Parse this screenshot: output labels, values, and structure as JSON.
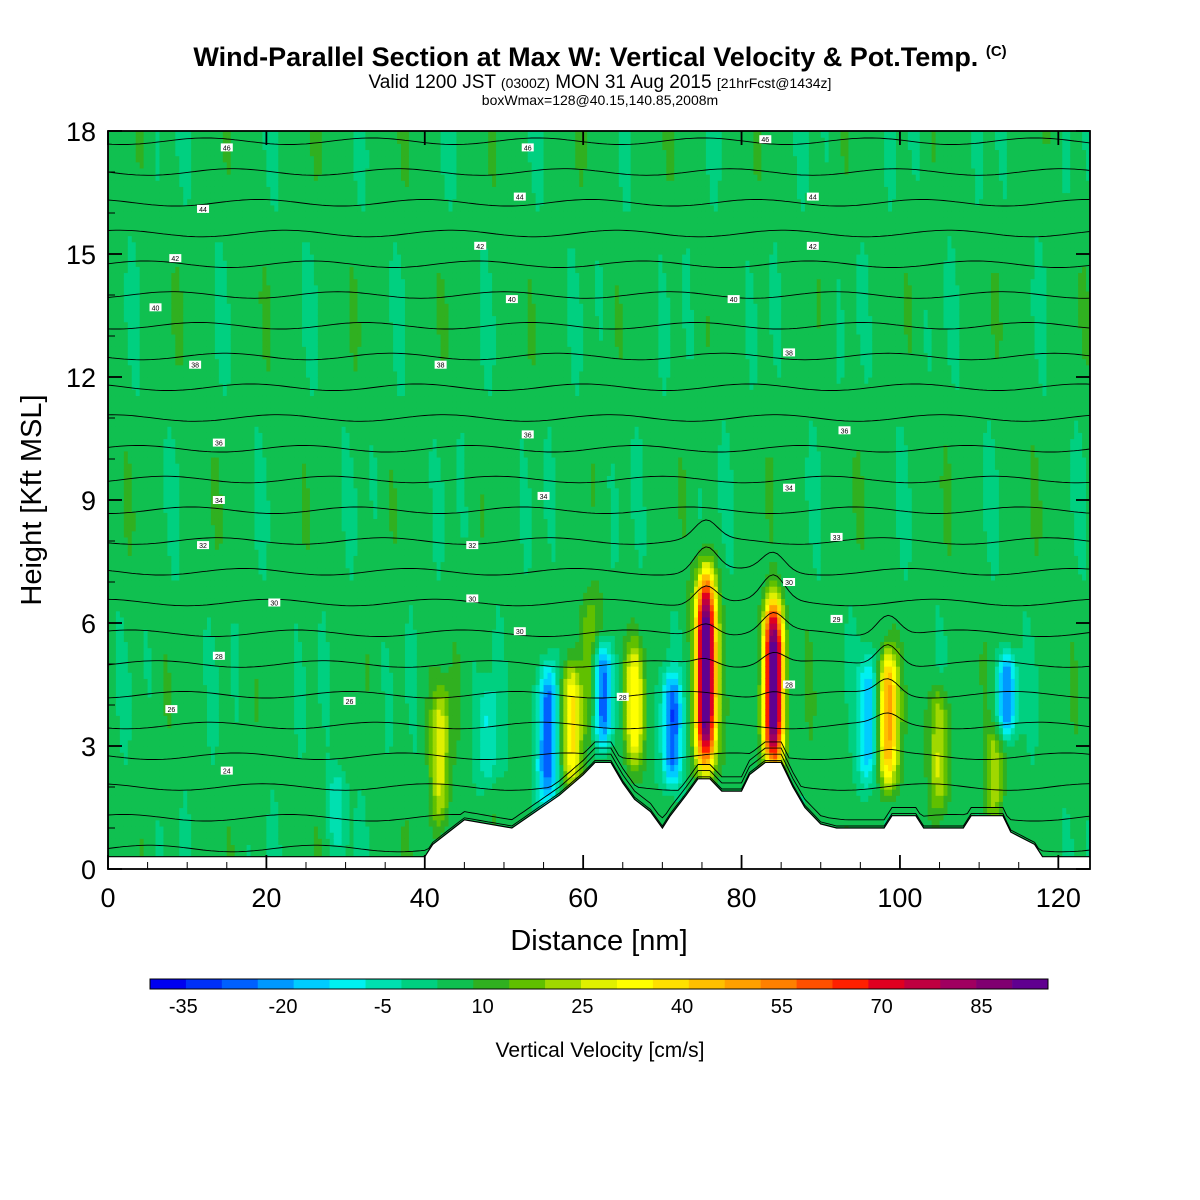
{
  "header": {
    "title": "Wind-Parallel Section at Max W: Vertical Velocity & Pot.Temp.",
    "copyright": "(C)",
    "valid_prefix": "Valid 1200 JST",
    "valid_utc": "(0300Z)",
    "valid_date": "MON 31 Aug 2015",
    "forecast": "[21hrFcst@1434z]",
    "box_info": "boxWmax=128@40.15,140.85,2008m"
  },
  "chart_data": {
    "type": "heatmap",
    "xlabel": "Distance [nm]",
    "ylabel": "Height [Kft MSL]",
    "xlim": [
      0,
      124
    ],
    "ylim": [
      0,
      18
    ],
    "x_ticks": [
      0,
      20,
      40,
      60,
      80,
      100,
      120
    ],
    "y_ticks": [
      0,
      3,
      6,
      9,
      12,
      15,
      18
    ],
    "colorbar": {
      "label": "Vertical Velocity [cm/s]",
      "min": -40,
      "max": 95,
      "step": 5,
      "tick_values": [
        -35,
        -20,
        -5,
        10,
        25,
        40,
        55,
        70,
        85
      ],
      "tick_labels": [
        "-35",
        "-20",
        "-5",
        "10",
        "25",
        "40",
        "55",
        "70",
        "85"
      ],
      "colors": [
        "#0000f0",
        "#0030f8",
        "#0060ff",
        "#0098ff",
        "#00ccff",
        "#00f0f0",
        "#00e0b0",
        "#00d080",
        "#10c050",
        "#30b020",
        "#60c000",
        "#a0d800",
        "#e0f000",
        "#ffff00",
        "#ffe000",
        "#ffc000",
        "#ffa000",
        "#ff8000",
        "#ff5000",
        "#ff2000",
        "#e00020",
        "#c00040",
        "#a00060",
        "#800070",
        "#600090"
      ]
    },
    "features": [
      {
        "x": 55.5,
        "zmin": 1.6,
        "zmax": 5.0,
        "w": -35
      },
      {
        "x": 62.5,
        "zmin": 3.0,
        "zmax": 5.5,
        "w": -32
      },
      {
        "x": 71.2,
        "zmin": 2.0,
        "zmax": 4.8,
        "w": -30
      },
      {
        "x": 96.0,
        "zmin": 2.0,
        "zmax": 5.2,
        "w": -22
      },
      {
        "x": 113.5,
        "zmin": 3.2,
        "zmax": 5.3,
        "w": -28
      },
      {
        "x": 48.0,
        "zmin": 2.0,
        "zmax": 4.5,
        "w": -12
      },
      {
        "x": 29.0,
        "zmin": 0.5,
        "zmax": 2.5,
        "w": -10
      },
      {
        "x": 75.5,
        "zmin": 2.5,
        "zmax": 7.2,
        "w": 90
      },
      {
        "x": 84.0,
        "zmin": 2.5,
        "zmax": 6.5,
        "w": 90
      },
      {
        "x": 98.5,
        "zmin": 2.0,
        "zmax": 5.3,
        "w": 40
      },
      {
        "x": 58.5,
        "zmin": 2.0,
        "zmax": 5.0,
        "w": 30
      },
      {
        "x": 42.0,
        "zmin": 1.0,
        "zmax": 4.5,
        "w": 20
      },
      {
        "x": 66.5,
        "zmin": 2.5,
        "zmax": 5.5,
        "w": 25
      },
      {
        "x": 60.8,
        "zmin": 3.0,
        "zmax": 6.8,
        "w": 15
      },
      {
        "x": 105.0,
        "zmin": 1.5,
        "zmax": 4.5,
        "w": 20
      },
      {
        "x": 112.0,
        "zmin": 1.0,
        "zmax": 3.5,
        "w": 15
      }
    ],
    "terrain": [
      [
        0,
        0.3
      ],
      [
        40,
        0.3
      ],
      [
        41,
        0.6
      ],
      [
        43,
        0.9
      ],
      [
        45,
        1.2
      ],
      [
        51,
        1.0
      ],
      [
        54,
        1.4
      ],
      [
        57,
        1.8
      ],
      [
        60,
        2.3
      ],
      [
        61.5,
        2.6
      ],
      [
        63.5,
        2.6
      ],
      [
        65,
        2.1
      ],
      [
        66.5,
        1.7
      ],
      [
        68.5,
        1.4
      ],
      [
        70,
        1.0
      ],
      [
        71,
        1.3
      ],
      [
        73,
        1.8
      ],
      [
        74.5,
        2.2
      ],
      [
        76,
        2.2
      ],
      [
        77.5,
        1.9
      ],
      [
        80,
        1.9
      ],
      [
        81,
        2.3
      ],
      [
        83,
        2.6
      ],
      [
        85,
        2.6
      ],
      [
        86.5,
        2.0
      ],
      [
        88,
        1.5
      ],
      [
        90,
        1.1
      ],
      [
        92,
        1.0
      ],
      [
        98,
        1.0
      ],
      [
        99,
        1.3
      ],
      [
        102,
        1.3
      ],
      [
        103,
        1.0
      ],
      [
        108,
        1.0
      ],
      [
        109,
        1.3
      ],
      [
        113,
        1.3
      ],
      [
        114,
        0.9
      ],
      [
        117,
        0.6
      ],
      [
        118,
        0.3
      ],
      [
        124,
        0.3
      ]
    ],
    "theta_levels": [
      23,
      24,
      25,
      26,
      27,
      28,
      29,
      30,
      31,
      32,
      33,
      34,
      35,
      36,
      37,
      38,
      39,
      40,
      41,
      42,
      43,
      44,
      45,
      46
    ],
    "theta_labels": [
      {
        "x": 15,
        "z": 2.4,
        "text": "24"
      },
      {
        "x": 8,
        "z": 3.9,
        "text": "26"
      },
      {
        "x": 30.5,
        "z": 4.1,
        "text": "26"
      },
      {
        "x": 14,
        "z": 5.2,
        "text": "28"
      },
      {
        "x": 21,
        "z": 6.5,
        "text": "30"
      },
      {
        "x": 46,
        "z": 6.6,
        "text": "30"
      },
      {
        "x": 52,
        "z": 5.8,
        "text": "30"
      },
      {
        "x": 12,
        "z": 7.9,
        "text": "32"
      },
      {
        "x": 46,
        "z": 7.9,
        "text": "32"
      },
      {
        "x": 14,
        "z": 9.0,
        "text": "34"
      },
      {
        "x": 55,
        "z": 9.1,
        "text": "34"
      },
      {
        "x": 86,
        "z": 9.3,
        "text": "34"
      },
      {
        "x": 14,
        "z": 10.4,
        "text": "36"
      },
      {
        "x": 53,
        "z": 10.6,
        "text": "36"
      },
      {
        "x": 93,
        "z": 10.7,
        "text": "36"
      },
      {
        "x": 11,
        "z": 12.3,
        "text": "38"
      },
      {
        "x": 42,
        "z": 12.3,
        "text": "38"
      },
      {
        "x": 86,
        "z": 12.6,
        "text": "38"
      },
      {
        "x": 6,
        "z": 13.7,
        "text": "40"
      },
      {
        "x": 51,
        "z": 13.9,
        "text": "40"
      },
      {
        "x": 79,
        "z": 13.9,
        "text": "40"
      },
      {
        "x": 8.5,
        "z": 14.9,
        "text": "42"
      },
      {
        "x": 47,
        "z": 15.2,
        "text": "42"
      },
      {
        "x": 89,
        "z": 15.2,
        "text": "42"
      },
      {
        "x": 12,
        "z": 16.1,
        "text": "44"
      },
      {
        "x": 52,
        "z": 16.4,
        "text": "44"
      },
      {
        "x": 89,
        "z": 16.4,
        "text": "44"
      },
      {
        "x": 15,
        "z": 17.6,
        "text": "46"
      },
      {
        "x": 53,
        "z": 17.6,
        "text": "46"
      },
      {
        "x": 83,
        "z": 17.8,
        "text": "46"
      },
      {
        "x": 65,
        "z": 4.2,
        "text": "28"
      },
      {
        "x": 86,
        "z": 4.5,
        "text": "28"
      },
      {
        "x": 92,
        "z": 6.1,
        "text": "29"
      },
      {
        "x": 86,
        "z": 7.0,
        "text": "30"
      },
      {
        "x": 92,
        "z": 8.1,
        "text": "33"
      }
    ]
  }
}
